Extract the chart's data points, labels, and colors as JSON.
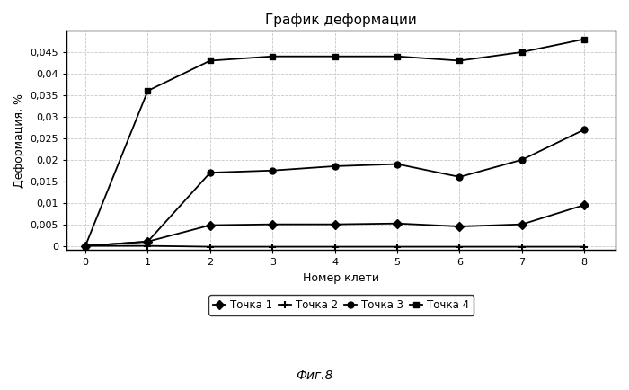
{
  "title": "График деформации",
  "xlabel": "Номер клети",
  "ylabel": "Деформация, %",
  "x": [
    0,
    1,
    2,
    3,
    4,
    5,
    6,
    7,
    8
  ],
  "tochka1": [
    0,
    0.001,
    0.0048,
    0.005,
    0.005,
    0.0052,
    0.0045,
    0.005,
    0.0095
  ],
  "tochka2": [
    0,
    0.0,
    -0.0002,
    -0.0002,
    -0.0002,
    -0.0002,
    -0.0002,
    -0.0002,
    -0.0002
  ],
  "tochka3": [
    0,
    0.001,
    0.017,
    0.0175,
    0.0185,
    0.019,
    0.016,
    0.02,
    0.027
  ],
  "tochka4": [
    0,
    0.036,
    0.043,
    0.044,
    0.044,
    0.044,
    0.043,
    0.045,
    0.048
  ],
  "ylim": [
    -0.001,
    0.05
  ],
  "yticks": [
    0,
    0.005,
    0.01,
    0.015,
    0.02,
    0.025,
    0.03,
    0.035,
    0.04,
    0.045
  ],
  "xlim": [
    -0.3,
    8.5
  ],
  "caption": "Фиг.8",
  "legend_labels": [
    "Точка 1",
    "Точка 2",
    "Точка 3",
    "Точка 4"
  ],
  "bg_color": "#ffffff",
  "fig_color": "#ffffff",
  "line_color": "#000000",
  "grid_color": "#c8c8c8"
}
